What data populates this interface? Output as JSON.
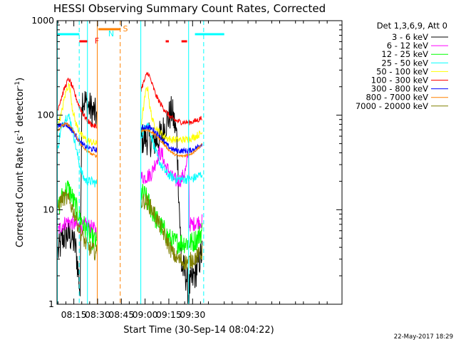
{
  "chart_data": {
    "type": "line",
    "title": "HESSI Observing Summary Count Rates, Corrected",
    "xlabel": "Start Time (30-Sep-14 08:04:22)",
    "ylabel_main": "Corrected Count Rate (s",
    "ylabel_sup1": "-1",
    "ylabel_mid": " detector",
    "ylabel_sup2": "-1",
    "ylabel_end": ")",
    "x_range_min": [
      484.37,
      664.37
    ],
    "y_log": true,
    "ylim": [
      1,
      1000
    ],
    "x_ticks": [
      {
        "value": 495,
        "label": "08:15"
      },
      {
        "value": 510,
        "label": "08:30"
      },
      {
        "value": 525,
        "label": "08:45"
      },
      {
        "value": 540,
        "label": "09:00"
      },
      {
        "value": 555,
        "label": "09:15"
      },
      {
        "value": 570,
        "label": "09:30"
      }
    ],
    "y_ticks": [
      {
        "value": 1,
        "label": "1"
      },
      {
        "value": 10,
        "label": "10"
      },
      {
        "value": 100,
        "label": "100"
      },
      {
        "value": 1000,
        "label": "1000"
      }
    ],
    "legend_header": "Det 1,3,6,9, Att 0",
    "legend_position": "right",
    "footer_date": "22-May-2017 18:29",
    "flag_labels": [
      {
        "id": "F",
        "text": "F",
        "color": "#ff0000"
      },
      {
        "id": "N",
        "text": "N",
        "color": "#00ffff"
      },
      {
        "id": "S",
        "text": "S",
        "color": "#ff8000"
      }
    ],
    "flags": [
      {
        "flag": "N",
        "color": "#00ffff",
        "segments": [
          [
            484.5,
            498.5
          ],
          [
            571.5,
            590.0
          ]
        ]
      },
      {
        "flag": "F",
        "color": "#ff0000",
        "segments": [
          [
            498.5,
            503.5
          ],
          [
            553.0,
            555.0
          ],
          [
            563.0,
            566.5
          ]
        ]
      },
      {
        "flag": "S",
        "color": "#ff8000",
        "segments": [
          [
            510.5,
            524.5
          ]
        ]
      }
    ],
    "vlines": [
      {
        "x": 484.6,
        "color": "#00ffff",
        "dashed": false
      },
      {
        "x": 498.4,
        "color": "#00ffff",
        "dashed": true
      },
      {
        "x": 503.6,
        "color": "#00ffff",
        "dashed": false
      },
      {
        "x": 509.8,
        "color": "#ff8000",
        "dashed": false
      },
      {
        "x": 524.3,
        "color": "#ff8000",
        "dashed": true
      },
      {
        "x": 537.3,
        "color": "#00ffff",
        "dashed": false
      },
      {
        "x": 567.5,
        "color": "#00ffff",
        "dashed": false
      },
      {
        "x": 577.0,
        "color": "#00ffff",
        "dashed": true
      }
    ],
    "series": [
      {
        "name": "3 - 6 keV",
        "color": "#000000",
        "noise": 0.18,
        "x": [
          485,
          488,
          491,
          494,
          496,
          497,
          498,
          499,
          500,
          501,
          503,
          506,
          508,
          509.5,
          537.5,
          540,
          543,
          545,
          548,
          551,
          554,
          557,
          560,
          563,
          566,
          567,
          567.5,
          568,
          570,
          572,
          574,
          576
        ],
        "y": [
          3.5,
          5,
          5.5,
          5,
          4,
          3,
          2,
          1.3,
          150,
          150,
          130,
          115,
          105,
          95,
          55,
          58,
          55,
          52,
          55,
          65,
          90,
          110,
          60,
          2.5,
          2,
          1.5,
          1.2,
          1.5,
          1.8,
          2.2,
          2.8,
          3.5
        ]
      },
      {
        "name": "6 - 12 keV",
        "color": "#ff00ff",
        "noise": 0.08,
        "x": [
          485,
          488,
          491,
          494,
          497,
          500,
          503,
          506,
          509,
          509.5,
          537.5,
          540,
          544,
          546,
          549,
          551,
          553,
          555,
          557,
          560,
          563,
          566,
          567.5,
          568,
          570,
          574,
          576
        ],
        "y": [
          6,
          7,
          7.5,
          7.2,
          6.8,
          6.5,
          7,
          6.5,
          6,
          6,
          22,
          22,
          24,
          30,
          40,
          38,
          28,
          26,
          22,
          20,
          21,
          27,
          45,
          7,
          7,
          7.5,
          7.5
        ]
      },
      {
        "name": "12 - 25 keV",
        "color": "#00ff00",
        "noise": 0.12,
        "x": [
          485,
          487,
          489,
          491,
          493,
          495,
          497,
          500,
          503,
          506,
          509,
          509.5,
          537.5,
          540,
          543,
          546,
          549,
          552,
          555,
          558,
          561,
          564,
          567,
          570,
          573,
          576
        ],
        "y": [
          10,
          13,
          15,
          17,
          15,
          12,
          10,
          7.5,
          6,
          5,
          4.5,
          4.3,
          15,
          14,
          11,
          8.5,
          7,
          6,
          5,
          4.5,
          4.5,
          4.5,
          4.5,
          4.5,
          5,
          6
        ]
      },
      {
        "name": "25 - 50 keV",
        "color": "#00ffff",
        "noise": 0.05,
        "x": [
          485,
          486,
          488,
          490,
          491.5,
          493,
          495,
          497,
          499,
          501,
          503,
          506,
          509,
          509.5,
          537.5,
          540,
          541,
          542,
          544,
          546,
          548,
          551,
          554,
          557,
          560,
          563,
          566,
          569,
          572,
          576
        ],
        "y": [
          45,
          60,
          80,
          95,
          100,
          85,
          60,
          40,
          28,
          22,
          20,
          20,
          19,
          19,
          60,
          75,
          85,
          80,
          60,
          45,
          35,
          28,
          24,
          22,
          21,
          21,
          21,
          21,
          22,
          24
        ]
      },
      {
        "name": "50 - 100 keV",
        "color": "#ffff00",
        "noise": 0.04,
        "x": [
          485,
          487,
          489,
          490.5,
          492,
          493,
          494,
          496,
          498,
          500,
          503,
          506,
          509,
          509.5,
          537.5,
          539,
          540,
          541,
          542,
          543,
          545,
          548,
          551,
          554,
          557,
          560,
          563,
          566,
          569,
          572,
          576
        ],
        "y": [
          80,
          100,
          150,
          190,
          210,
          170,
          120,
          85,
          70,
          60,
          55,
          52,
          50,
          50,
          80,
          120,
          160,
          200,
          180,
          120,
          85,
          70,
          62,
          57,
          55,
          55,
          55,
          55,
          57,
          60,
          65
        ]
      },
      {
        "name": "100 - 300 keV",
        "color": "#ff0000",
        "noise": 0.03,
        "x": [
          485,
          487,
          489,
          491,
          492,
          494,
          496,
          498,
          500,
          503,
          506,
          509,
          509.5,
          537.5,
          539,
          541,
          542,
          543,
          545,
          547,
          550,
          553,
          556,
          559,
          562,
          565,
          568,
          571,
          574,
          576
        ],
        "y": [
          120,
          150,
          190,
          230,
          240,
          200,
          160,
          130,
          110,
          90,
          80,
          75,
          75,
          190,
          220,
          270,
          280,
          250,
          200,
          160,
          130,
          110,
          95,
          88,
          85,
          84,
          84,
          86,
          90,
          95
        ]
      },
      {
        "name": "300 - 800 keV",
        "color": "#0000ff",
        "noise": 0.03,
        "x": [
          485,
          487,
          489,
          491,
          493,
          495,
          497,
          499,
          501,
          503,
          506,
          509,
          509.5,
          537.5,
          540,
          543,
          546,
          549,
          552,
          555,
          558,
          561,
          564,
          567,
          570,
          573,
          576
        ],
        "y": [
          75,
          80,
          80,
          78,
          72,
          65,
          58,
          52,
          48,
          46,
          44,
          43,
          43,
          72,
          75,
          74,
          68,
          60,
          52,
          46,
          43,
          42,
          42,
          42,
          43,
          46,
          50
        ]
      },
      {
        "name": "800 - 7000 keV",
        "color": "#ff8000",
        "noise": 0.015,
        "x": [
          485,
          487,
          489,
          491,
          493,
          495,
          497,
          499,
          501,
          503,
          506,
          509,
          509.5,
          537.5,
          540,
          543,
          546,
          549,
          552,
          555,
          558,
          561,
          564,
          567,
          570,
          573,
          576
        ],
        "y": [
          70,
          76,
          80,
          80,
          75,
          67,
          58,
          50,
          45,
          42,
          39,
          37,
          37,
          68,
          70,
          68,
          63,
          56,
          49,
          43,
          39,
          37,
          37,
          38,
          40,
          44,
          49
        ]
      },
      {
        "name": "7000 - 20000 keV",
        "color": "#808000",
        "noise": 0.09,
        "x": [
          485,
          487,
          489,
          491,
          493,
          495,
          497,
          499,
          501,
          503,
          506,
          509,
          509.5,
          537.5,
          540,
          543,
          546,
          549,
          552,
          555,
          558,
          561,
          564,
          567,
          570,
          573,
          576
        ],
        "y": [
          11,
          12.5,
          13.5,
          13,
          11.5,
          9.5,
          7.5,
          6,
          5,
          4.2,
          3.8,
          3.5,
          3.5,
          12,
          12.5,
          11,
          9,
          7,
          5.5,
          4.2,
          3.3,
          3,
          2.8,
          2.8,
          3,
          3.2,
          3.5
        ]
      }
    ]
  }
}
